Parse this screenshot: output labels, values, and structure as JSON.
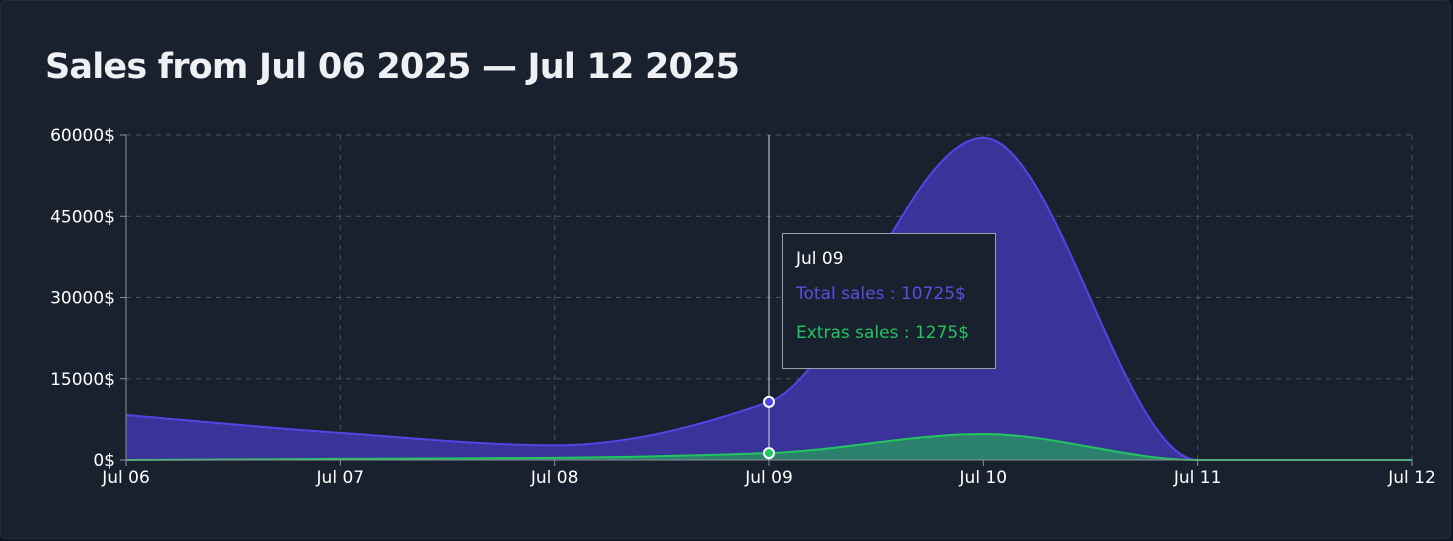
{
  "title": "Sales from Jul 06 2025 — Jul 12 2025",
  "colors": {
    "total_fill": "#3c36a0",
    "total_line": "#4f46e5",
    "extras_fill": "#2a8a68",
    "extras_line": "#22c55e",
    "grid": "#4a5263",
    "background": "#19202e"
  },
  "tooltip": {
    "date": "Jul 09",
    "total_text": "Total sales : 10725$",
    "extras_text": "Extras sales : 1275$"
  },
  "chart_data": {
    "type": "area",
    "x": [
      "Jul 06",
      "Jul 07",
      "Jul 08",
      "Jul 09",
      "Jul 10",
      "Jul 11",
      "Jul 12"
    ],
    "series": [
      {
        "name": "Total sales",
        "values": [
          8300,
          5000,
          2700,
          10725,
          59500,
          0,
          0
        ]
      },
      {
        "name": "Extras sales",
        "values": [
          0,
          200,
          400,
          1275,
          4800,
          0,
          0
        ]
      }
    ],
    "ylim": [
      0,
      60000
    ],
    "y_ticks": [
      0,
      15000,
      30000,
      45000,
      60000
    ],
    "y_tick_labels": [
      "0$",
      "15000$",
      "30000$",
      "45000$",
      "60000$"
    ],
    "grid": true,
    "highlight_x": "Jul 09"
  }
}
